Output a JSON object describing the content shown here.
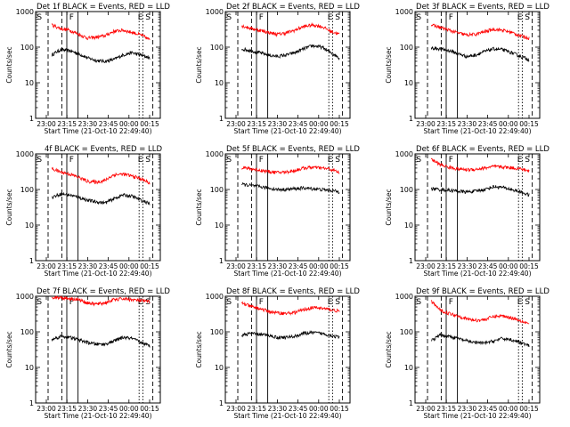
{
  "common": {
    "xlabel": "Start Time (21-Oct-10 22:49:40)",
    "ylabel": "Counts/sec",
    "x_tick_labels": [
      "23:00",
      "23:15",
      "23:30",
      "23:45",
      "00:00",
      "00:15"
    ],
    "y_tick_labels": [
      "1",
      "10",
      "100",
      "1000"
    ],
    "colors": {
      "events": "#000000",
      "lld": "#ff0000",
      "frame": "#000000"
    }
  },
  "chart_data": [
    {
      "type": "line",
      "title": "Det 1f BLACK = Events, RED = LLD",
      "yscale": "log",
      "ylim": [
        1,
        1000
      ],
      "markers": [
        "S",
        "F",
        "E",
        "S"
      ],
      "series": [
        {
          "name": "Events",
          "color": "#000000",
          "values": [
            60,
            85,
            80,
            65,
            50,
            42,
            40,
            45,
            60,
            70,
            60,
            50
          ]
        },
        {
          "name": "LLD",
          "color": "#ff0000",
          "values": [
            420,
            330,
            300,
            230,
            180,
            190,
            210,
            280,
            300,
            260,
            220,
            160
          ]
        }
      ]
    },
    {
      "type": "line",
      "title": "Det 2f BLACK = Events, RED = LLD",
      "yscale": "log",
      "ylim": [
        1,
        1000
      ],
      "markers": [
        "S",
        "F",
        "E",
        "S"
      ],
      "series": [
        {
          "name": "Events",
          "color": "#000000",
          "values": [
            90,
            80,
            70,
            60,
            55,
            60,
            70,
            90,
            110,
            100,
            70,
            50
          ]
        },
        {
          "name": "LLD",
          "color": "#ff0000",
          "values": [
            400,
            340,
            300,
            260,
            230,
            250,
            300,
            380,
            420,
            380,
            280,
            230
          ]
        }
      ]
    },
    {
      "type": "line",
      "title": "Det 3f BLACK = Events, RED = LLD",
      "yscale": "log",
      "ylim": [
        1,
        1000
      ],
      "markers": [
        "S",
        "F",
        "E",
        "S"
      ],
      "series": [
        {
          "name": "Events",
          "color": "#000000",
          "values": [
            95,
            90,
            80,
            65,
            55,
            60,
            75,
            90,
            85,
            70,
            55,
            45
          ]
        },
        {
          "name": "LLD",
          "color": "#ff0000",
          "values": [
            420,
            360,
            300,
            250,
            220,
            230,
            270,
            320,
            300,
            260,
            210,
            180
          ]
        }
      ]
    },
    {
      "type": "line",
      "title": "4f BLACK = Events, RED = LLD",
      "yscale": "log",
      "ylim": [
        1,
        1000
      ],
      "markers": [
        "S",
        "F",
        "E",
        "S"
      ],
      "series": [
        {
          "name": "Events",
          "color": "#000000",
          "values": [
            60,
            75,
            70,
            60,
            50,
            45,
            42,
            55,
            70,
            65,
            50,
            40
          ]
        },
        {
          "name": "LLD",
          "color": "#ff0000",
          "values": [
            380,
            310,
            270,
            220,
            170,
            160,
            180,
            260,
            270,
            240,
            200,
            150
          ]
        }
      ]
    },
    {
      "type": "line",
      "title": "Det 5f BLACK = Events, RED = LLD",
      "yscale": "log",
      "ylim": [
        1,
        1000
      ],
      "markers": [
        "S",
        "F",
        "E",
        "S"
      ],
      "series": [
        {
          "name": "Events",
          "color": "#000000",
          "values": [
            140,
            130,
            120,
            110,
            100,
            100,
            105,
            110,
            105,
            100,
            95,
            85
          ]
        },
        {
          "name": "LLD",
          "color": "#ff0000",
          "values": [
            420,
            380,
            350,
            320,
            300,
            310,
            340,
            400,
            420,
            400,
            370,
            300
          ]
        }
      ]
    },
    {
      "type": "line",
      "title": "Det 6f BLACK = Events, RED = LLD",
      "yscale": "log",
      "ylim": [
        1,
        1000
      ],
      "markers": [
        "S",
        "F",
        "E",
        "S"
      ],
      "series": [
        {
          "name": "Events",
          "color": "#000000",
          "values": [
            105,
            100,
            95,
            90,
            85,
            90,
            100,
            120,
            115,
            100,
            85,
            70
          ]
        },
        {
          "name": "LLD",
          "color": "#ff0000",
          "values": [
            700,
            500,
            420,
            380,
            360,
            370,
            400,
            440,
            430,
            410,
            380,
            330
          ]
        }
      ]
    },
    {
      "type": "line",
      "title": "Det 7f BLACK = Events, RED = LLD",
      "yscale": "log",
      "ylim": [
        1,
        1000
      ],
      "markers": [
        "S",
        "F",
        "E",
        "S"
      ],
      "series": [
        {
          "name": "Events",
          "color": "#000000",
          "values": [
            60,
            75,
            70,
            60,
            50,
            45,
            45,
            55,
            70,
            65,
            50,
            40
          ]
        },
        {
          "name": "LLD",
          "color": "#ff0000",
          "values": [
            950,
            920,
            870,
            800,
            650,
            600,
            650,
            800,
            850,
            800,
            750,
            700
          ]
        }
      ]
    },
    {
      "type": "line",
      "title": "Det 8f BLACK = Events, RED = LLD",
      "yscale": "log",
      "ylim": [
        1,
        1000
      ],
      "markers": [
        "S",
        "F",
        "E",
        "S"
      ],
      "series": [
        {
          "name": "Events",
          "color": "#000000",
          "values": [
            80,
            90,
            85,
            80,
            70,
            70,
            75,
            90,
            95,
            90,
            80,
            70
          ]
        },
        {
          "name": "LLD",
          "color": "#ff0000",
          "values": [
            650,
            520,
            450,
            380,
            340,
            330,
            350,
            420,
            480,
            460,
            420,
            380
          ]
        }
      ]
    },
    {
      "type": "line",
      "title": "Det 9f BLACK = Events, RED = LLD",
      "yscale": "log",
      "ylim": [
        1,
        1000
      ],
      "markers": [
        "S",
        "F",
        "E",
        "S"
      ],
      "series": [
        {
          "name": "Events",
          "color": "#000000",
          "values": [
            55,
            80,
            75,
            65,
            55,
            50,
            48,
            55,
            65,
            60,
            50,
            40
          ]
        },
        {
          "name": "LLD",
          "color": "#ff0000",
          "values": [
            700,
            400,
            330,
            280,
            230,
            210,
            220,
            270,
            280,
            250,
            210,
            170
          ]
        }
      ]
    }
  ]
}
